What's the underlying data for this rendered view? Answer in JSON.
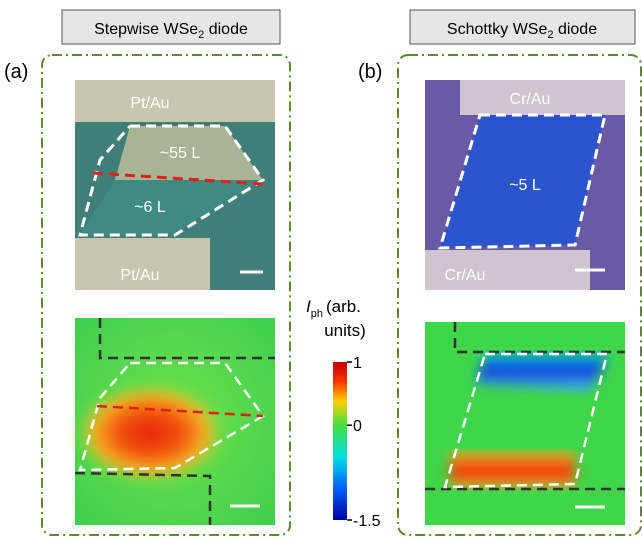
{
  "panels": [
    {
      "label": "(a)",
      "header": {
        "prefix": "Stepwise WSe",
        "sub": "2",
        "suffix": " diode"
      },
      "optical_labels": [
        "Pt/Au",
        "~55 L",
        "~6 L",
        "Pt/Au"
      ]
    },
    {
      "label": "(b)",
      "header": {
        "prefix": "Schottky WSe",
        "sub": "2",
        "suffix": " diode"
      },
      "optical_labels": [
        "Cr/Au",
        "~5 L",
        "Cr/Au"
      ]
    }
  ],
  "colorbar": {
    "symbol": "I",
    "symbol_sub": "ph",
    "unit_line1": "(arb.",
    "unit_line2": "units)",
    "range": [
      -1.5,
      1
    ],
    "ticks": [
      1,
      0,
      -1.5
    ]
  }
}
